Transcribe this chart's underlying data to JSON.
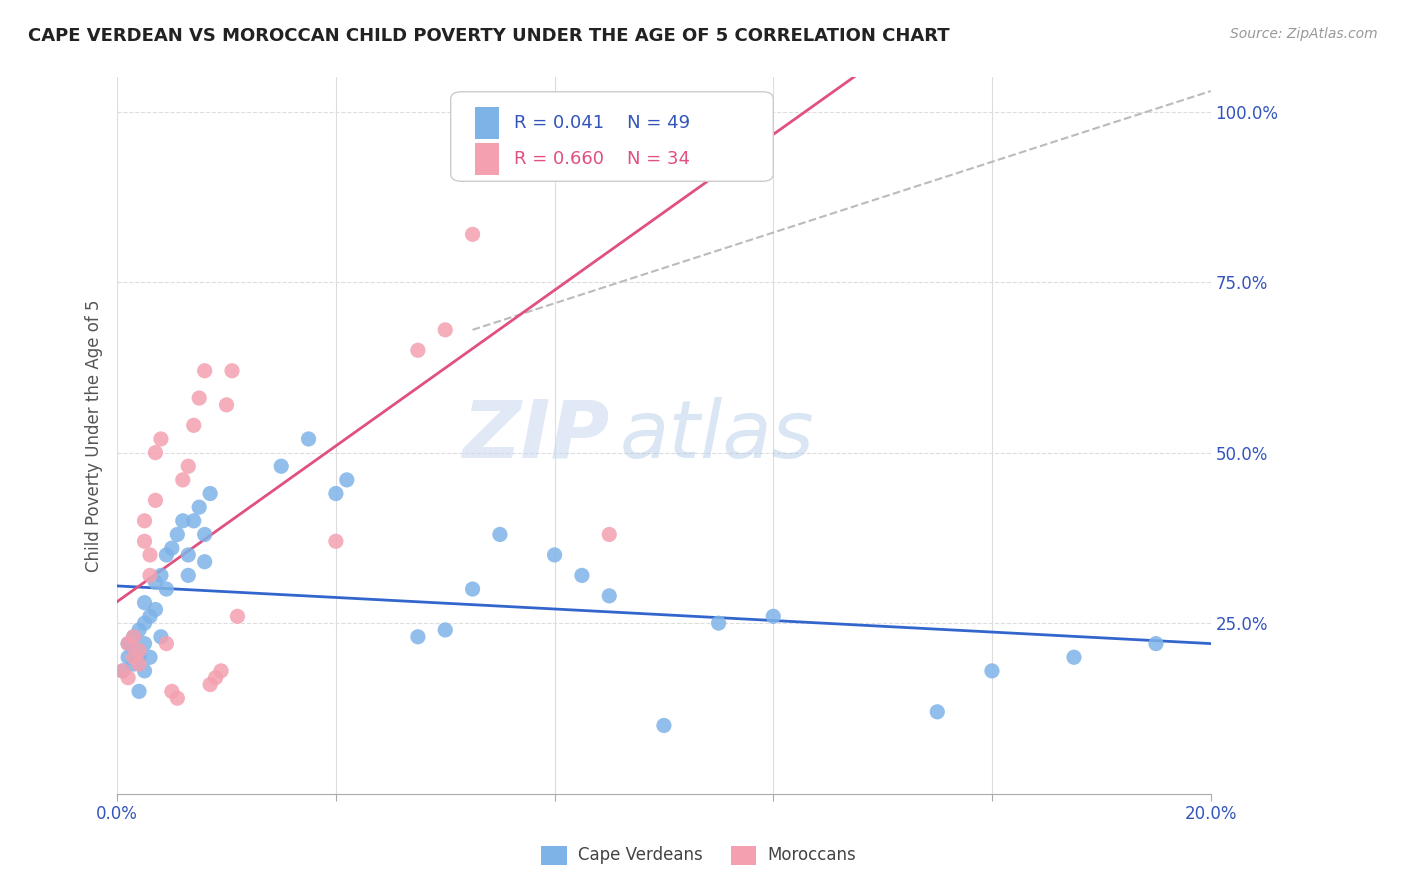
{
  "title": "CAPE VERDEAN VS MOROCCAN CHILD POVERTY UNDER THE AGE OF 5 CORRELATION CHART",
  "source": "Source: ZipAtlas.com",
  "ylabel": "Child Poverty Under the Age of 5",
  "xlim": [
    0.0,
    0.2
  ],
  "ylim": [
    0.0,
    1.05
  ],
  "xticks": [
    0.0,
    0.04,
    0.08,
    0.12,
    0.16,
    0.2
  ],
  "xticklabels": [
    "0.0%",
    "",
    "",
    "",
    "",
    "20.0%"
  ],
  "yticks_right": [
    0.25,
    0.5,
    0.75,
    1.0
  ],
  "ytick_labels_right": [
    "25.0%",
    "50.0%",
    "75.0%",
    "100.0%"
  ],
  "cape_verdean_color": "#7EB3E8",
  "moroccan_color": "#F4A0B0",
  "trend_cv_color": "#3366CC",
  "trend_moroccan_color": "#E05080",
  "trend_dashed_color": "#BBBBBB",
  "legend_r_cv": "R = 0.041",
  "legend_n_cv": "N = 49",
  "legend_r_mor": "R = 0.660",
  "legend_n_mor": "N = 34",
  "watermark_zip": "ZIP",
  "watermark_atlas": "atlas",
  "background_color": "#FFFFFF",
  "grid_color": "#DDDDDD",
  "cape_verdeans_x": [
    0.001,
    0.002,
    0.002,
    0.003,
    0.003,
    0.003,
    0.004,
    0.004,
    0.004,
    0.005,
    0.005,
    0.005,
    0.005,
    0.006,
    0.006,
    0.007,
    0.007,
    0.008,
    0.008,
    0.009,
    0.009,
    0.01,
    0.011,
    0.012,
    0.013,
    0.013,
    0.014,
    0.015,
    0.016,
    0.016,
    0.017,
    0.03,
    0.035,
    0.04,
    0.042,
    0.055,
    0.06,
    0.065,
    0.07,
    0.08,
    0.085,
    0.09,
    0.1,
    0.11,
    0.12,
    0.15,
    0.16,
    0.175,
    0.19
  ],
  "cape_verdeans_y": [
    0.18,
    0.2,
    0.22,
    0.19,
    0.21,
    0.23,
    0.15,
    0.2,
    0.24,
    0.18,
    0.22,
    0.25,
    0.28,
    0.2,
    0.26,
    0.27,
    0.31,
    0.23,
    0.32,
    0.3,
    0.35,
    0.36,
    0.38,
    0.4,
    0.32,
    0.35,
    0.4,
    0.42,
    0.34,
    0.38,
    0.44,
    0.48,
    0.52,
    0.44,
    0.46,
    0.23,
    0.24,
    0.3,
    0.38,
    0.35,
    0.32,
    0.29,
    0.1,
    0.25,
    0.26,
    0.12,
    0.18,
    0.2,
    0.22
  ],
  "moroccans_x": [
    0.001,
    0.002,
    0.002,
    0.003,
    0.003,
    0.004,
    0.004,
    0.005,
    0.005,
    0.006,
    0.006,
    0.007,
    0.007,
    0.008,
    0.009,
    0.01,
    0.011,
    0.012,
    0.013,
    0.014,
    0.015,
    0.016,
    0.017,
    0.018,
    0.019,
    0.02,
    0.021,
    0.022,
    0.04,
    0.055,
    0.06,
    0.065,
    0.07,
    0.09
  ],
  "moroccans_y": [
    0.18,
    0.17,
    0.22,
    0.2,
    0.23,
    0.19,
    0.21,
    0.37,
    0.4,
    0.32,
    0.35,
    0.43,
    0.5,
    0.52,
    0.22,
    0.15,
    0.14,
    0.46,
    0.48,
    0.54,
    0.58,
    0.62,
    0.16,
    0.17,
    0.18,
    0.57,
    0.62,
    0.26,
    0.37,
    0.65,
    0.68,
    0.82,
    1.0,
    0.38
  ],
  "legend_cv_label": "Cape Verdeans",
  "legend_mor_label": "Moroccans"
}
